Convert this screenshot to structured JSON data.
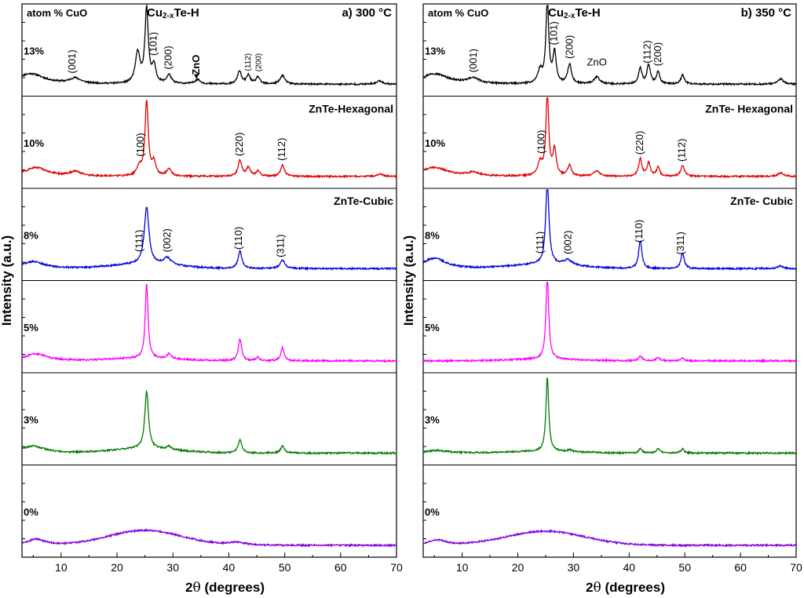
{
  "chart_data": [
    {
      "type": "line",
      "panel_label": "a) 300 °C",
      "header_left": "atom % CuO",
      "header_phase_main": "Cu",
      "header_phase_sub": "2-x",
      "header_phase_tail": "Te-H",
      "xlabel_prefix": "2",
      "xlabel_theta": "θ",
      "xlabel_suffix": " (degrees)",
      "ylabel": "Intensity  (a.u.)",
      "xlim": [
        3,
        70
      ],
      "xticks": [
        "10",
        "20",
        "30",
        "40",
        "50",
        "60",
        "70"
      ],
      "phase_labels": [
        "ZnTe-Hexagonal",
        "ZnTe-Cubic"
      ],
      "series": [
        {
          "name": "13%",
          "color": "#000000",
          "baseline": 0.1,
          "hump": {
            "amp": 0.0,
            "center": 25,
            "width": 8
          },
          "peaks": [
            [
              4.5,
              0.12,
              3
            ],
            [
              12.5,
              0.06,
              1.2
            ],
            [
              23.7,
              0.35,
              0.5
            ],
            [
              25.3,
              0.85,
              0.35
            ],
            [
              26.6,
              0.2,
              0.4
            ],
            [
              29.3,
              0.1,
              0.5
            ],
            [
              34.4,
              0.05,
              0.6
            ],
            [
              41.9,
              0.15,
              0.4
            ],
            [
              43.5,
              0.1,
              0.4
            ],
            [
              45.2,
              0.08,
              0.4
            ],
            [
              49.6,
              0.1,
              0.5
            ],
            [
              67,
              0.04,
              0.6
            ]
          ],
          "annotations": [
            {
              "text": "(001)",
              "x": 12,
              "rot": -90,
              "size": "n"
            },
            {
              "text": "(101)",
              "x": 26.5,
              "rot": -90,
              "size": "n"
            },
            {
              "text": "(200)",
              "x": 29.2,
              "rot": -90,
              "size": "n"
            },
            {
              "text": "ZnO",
              "x": 34.2,
              "rot": -90,
              "size": "b"
            },
            {
              "text": "(112)",
              "x": 43.3,
              "rot": -90,
              "size": "s"
            },
            {
              "text": "(200)",
              "x": 45.2,
              "rot": -90,
              "size": "s"
            }
          ]
        },
        {
          "name": "10%",
          "color": "#e00000",
          "baseline": 0.1,
          "hump": {
            "amp": 0.0,
            "center": 25,
            "width": 8
          },
          "peaks": [
            [
              5.5,
              0.1,
              2.5
            ],
            [
              12.5,
              0.05,
              1.2
            ],
            [
              24.0,
              0.1,
              0.5
            ],
            [
              25.3,
              0.85,
              0.35
            ],
            [
              26.6,
              0.15,
              0.4
            ],
            [
              29.3,
              0.08,
              0.5
            ],
            [
              42.0,
              0.18,
              0.4
            ],
            [
              43.5,
              0.1,
              0.4
            ],
            [
              45.2,
              0.06,
              0.4
            ],
            [
              49.6,
              0.13,
              0.4
            ],
            [
              67,
              0.03,
              0.6
            ]
          ],
          "annotations": [
            {
              "text": "(100)",
              "x": 24.2,
              "rot": -90,
              "size": "n"
            },
            {
              "text": "(220)",
              "x": 41.9,
              "rot": -90,
              "size": "n"
            },
            {
              "text": "(112)",
              "x": 49.5,
              "rot": -90,
              "size": "n"
            }
          ]
        },
        {
          "name": "8%",
          "color": "#0000e0",
          "baseline": 0.1,
          "hump": {
            "amp": 0.05,
            "center": 25,
            "width": 6
          },
          "peaks": [
            [
              5.0,
              0.08,
              2.5
            ],
            [
              25.3,
              0.65,
              0.5
            ],
            [
              29.0,
              0.08,
              0.8
            ],
            [
              42.0,
              0.2,
              0.4
            ],
            [
              49.6,
              0.1,
              0.5
            ]
          ],
          "annotations": [
            {
              "text": "(111)",
              "x": 24.0,
              "rot": -90,
              "size": "n"
            },
            {
              "text": "(002)",
              "x": 29.0,
              "rot": -90,
              "size": "n"
            },
            {
              "text": "(110)",
              "x": 41.8,
              "rot": -90,
              "size": "n"
            },
            {
              "text": "(311)",
              "x": 49.3,
              "rot": -90,
              "size": "n"
            }
          ]
        },
        {
          "name": "5%",
          "color": "#ff00ff",
          "baseline": 0.1,
          "hump": {
            "amp": 0.03,
            "center": 25,
            "width": 6
          },
          "peaks": [
            [
              5.5,
              0.08,
              2.5
            ],
            [
              25.3,
              0.85,
              0.3
            ],
            [
              29.3,
              0.06,
              0.4
            ],
            [
              42.0,
              0.25,
              0.35
            ],
            [
              45.2,
              0.04,
              0.4
            ],
            [
              49.6,
              0.15,
              0.35
            ]
          ],
          "annotations": []
        },
        {
          "name": "3%",
          "color": "#007a00",
          "baseline": 0.1,
          "hump": {
            "amp": 0.05,
            "center": 25,
            "width": 6
          },
          "peaks": [
            [
              5.0,
              0.08,
              2.5
            ],
            [
              25.3,
              0.65,
              0.4
            ],
            [
              29.3,
              0.04,
              0.4
            ],
            [
              42.0,
              0.15,
              0.4
            ],
            [
              49.6,
              0.08,
              0.4
            ]
          ],
          "annotations": []
        },
        {
          "name": "0%",
          "color": "#8000e0",
          "baseline": 0.1,
          "hump": {
            "amp": 0.17,
            "center": 25,
            "width": 6.5
          },
          "peaks": [
            [
              5.5,
              0.07,
              2.0
            ],
            [
              41.5,
              0.03,
              2.0
            ]
          ],
          "annotations": []
        }
      ]
    },
    {
      "type": "line",
      "panel_label": "b) 350 °C",
      "header_left": "atom % CuO",
      "header_phase_main": "Cu",
      "header_phase_sub": "2-x",
      "header_phase_tail": "Te-H",
      "xlabel_prefix": "2",
      "xlabel_theta": "θ",
      "xlabel_suffix": " (degrees)",
      "ylabel": "Intensity  (a.u.)",
      "xlim": [
        3,
        70
      ],
      "xticks": [
        "10",
        "20",
        "30",
        "40",
        "50",
        "60",
        "70"
      ],
      "phase_labels": [
        "ZnTe- Hexagonal",
        "ZnTe- Cubic"
      ],
      "series": [
        {
          "name": "13%",
          "color": "#000000",
          "baseline": 0.1,
          "hump": {
            "amp": 0.0,
            "center": 25,
            "width": 8
          },
          "peaks": [
            [
              5.0,
              0.12,
              3
            ],
            [
              12.0,
              0.06,
              1.2
            ],
            [
              24.0,
              0.15,
              0.5
            ],
            [
              25.3,
              0.95,
              0.3
            ],
            [
              26.6,
              0.35,
              0.35
            ],
            [
              29.3,
              0.22,
              0.4
            ],
            [
              34.2,
              0.08,
              0.6
            ],
            [
              42.0,
              0.18,
              0.35
            ],
            [
              43.5,
              0.22,
              0.35
            ],
            [
              45.2,
              0.14,
              0.35
            ],
            [
              49.6,
              0.1,
              0.4
            ],
            [
              67.2,
              0.06,
              0.6
            ]
          ],
          "annotations": [
            {
              "text": "(001)",
              "x": 12,
              "rot": -90,
              "size": "n"
            },
            {
              "text": "(101)",
              "x": 26.5,
              "rot": -90,
              "size": "n"
            },
            {
              "text": "(200)",
              "x": 29.3,
              "rot": -90,
              "size": "n"
            },
            {
              "text": "ZnO",
              "x": 34.2,
              "rot": 0,
              "size": "n"
            },
            {
              "text": "(112)",
              "x": 43.3,
              "rot": -90,
              "size": "n"
            },
            {
              "text": "(200)",
              "x": 45.2,
              "rot": -90,
              "size": "n"
            }
          ]
        },
        {
          "name": "10%",
          "color": "#e00000",
          "baseline": 0.1,
          "hump": {
            "amp": 0.0,
            "center": 25,
            "width": 8
          },
          "peaks": [
            [
              5.0,
              0.1,
              3
            ],
            [
              12.0,
              0.04,
              1.2
            ],
            [
              24.0,
              0.15,
              0.5
            ],
            [
              25.3,
              0.95,
              0.3
            ],
            [
              26.6,
              0.3,
              0.35
            ],
            [
              29.3,
              0.12,
              0.4
            ],
            [
              34.2,
              0.06,
              0.6
            ],
            [
              42.0,
              0.2,
              0.35
            ],
            [
              43.5,
              0.15,
              0.35
            ],
            [
              45.2,
              0.1,
              0.35
            ],
            [
              49.6,
              0.12,
              0.4
            ],
            [
              67.2,
              0.04,
              0.6
            ]
          ],
          "annotations": [
            {
              "text": "(100)",
              "x": 24.2,
              "rot": -90,
              "size": "n"
            },
            {
              "text": "(220)",
              "x": 41.9,
              "rot": -90,
              "size": "n"
            },
            {
              "text": "(112)",
              "x": 49.5,
              "rot": -90,
              "size": "n"
            }
          ]
        },
        {
          "name": "8%",
          "color": "#0000e0",
          "baseline": 0.1,
          "hump": {
            "amp": 0.05,
            "center": 25,
            "width": 6
          },
          "peaks": [
            [
              5.0,
              0.12,
              2.5
            ],
            [
              25.3,
              0.95,
              0.35
            ],
            [
              29.0,
              0.06,
              0.8
            ],
            [
              42.0,
              0.32,
              0.35
            ],
            [
              49.6,
              0.18,
              0.35
            ],
            [
              67.2,
              0.03,
              0.6
            ]
          ],
          "annotations": [
            {
              "text": "(111)",
              "x": 24.0,
              "rot": -90,
              "size": "n"
            },
            {
              "text": "(002)",
              "x": 29.0,
              "rot": -90,
              "size": "n"
            },
            {
              "text": "(110)",
              "x": 41.8,
              "rot": -90,
              "size": "n"
            },
            {
              "text": "(311)",
              "x": 49.3,
              "rot": -90,
              "size": "n"
            }
          ]
        },
        {
          "name": "5%",
          "color": "#ff00ff",
          "baseline": 0.1,
          "hump": {
            "amp": 0.02,
            "center": 25,
            "width": 6
          },
          "peaks": [
            [
              25.3,
              0.95,
              0.3
            ],
            [
              42.0,
              0.06,
              0.35
            ],
            [
              45.2,
              0.04,
              0.4
            ],
            [
              49.6,
              0.04,
              0.35
            ]
          ],
          "annotations": []
        },
        {
          "name": "3%",
          "color": "#007a00",
          "baseline": 0.1,
          "hump": {
            "amp": 0.02,
            "center": 25,
            "width": 6
          },
          "peaks": [
            [
              5.5,
              0.03,
              2.5
            ],
            [
              25.3,
              0.85,
              0.3
            ],
            [
              29.3,
              0.02,
              0.4
            ],
            [
              42.0,
              0.05,
              0.35
            ],
            [
              45.2,
              0.05,
              0.4
            ],
            [
              49.6,
              0.05,
              0.35
            ]
          ],
          "annotations": []
        },
        {
          "name": "0%",
          "color": "#8000e0",
          "baseline": 0.1,
          "hump": {
            "amp": 0.16,
            "center": 25,
            "width": 7.0
          },
          "peaks": [
            [
              5.5,
              0.06,
              2.0
            ]
          ],
          "annotations": []
        }
      ]
    }
  ]
}
